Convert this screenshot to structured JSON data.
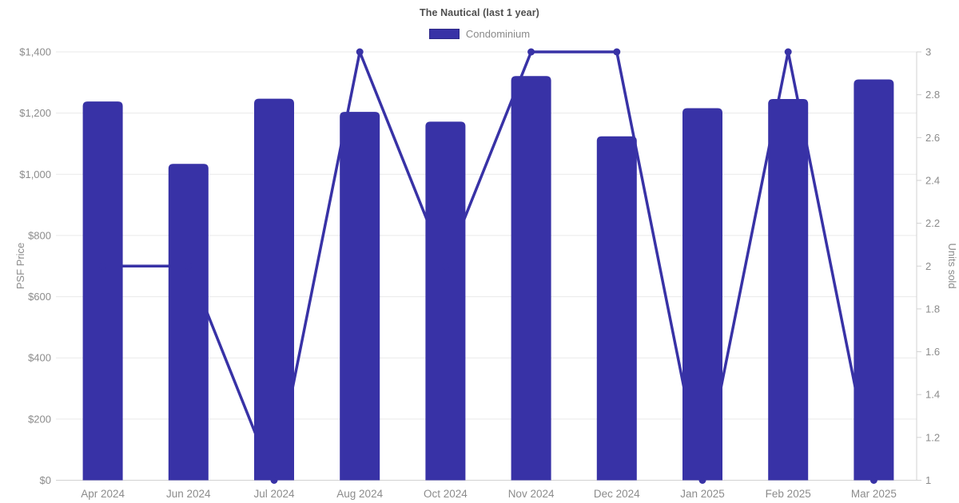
{
  "chart_data": {
    "type": "bar",
    "subtype": "bar-line-combo",
    "title": "The Nautical (last 1 year)",
    "legend": {
      "items": [
        {
          "label": "Condominium"
        }
      ],
      "position": "top"
    },
    "categories": [
      "Apr 2024",
      "Jun 2024",
      "Jul 2024",
      "Aug 2024",
      "Oct 2024",
      "Nov 2024",
      "Dec 2024",
      "Jan 2025",
      "Feb 2025",
      "Mar 2025"
    ],
    "series": [
      {
        "name": "PSF Price",
        "type": "bar",
        "axis": "left",
        "values": [
          1238,
          1034,
          1247,
          1204,
          1172,
          1321,
          1124,
          1216,
          1246,
          1310
        ]
      },
      {
        "name": "Units sold",
        "type": "line",
        "axis": "right",
        "values": [
          2,
          2,
          1,
          3,
          2,
          3,
          3,
          1,
          3,
          1
        ]
      }
    ],
    "left_axis": {
      "label": "PSF Price",
      "min": 0,
      "max": 1400,
      "tick_step": 200,
      "ticks": [
        "$0",
        "$200",
        "$400",
        "$600",
        "$800",
        "$1,000",
        "$1,200",
        "$1,400"
      ]
    },
    "right_axis": {
      "label": "Units sold",
      "min": 1,
      "max": 3,
      "tick_step": 0.2,
      "ticks": [
        "1",
        "1.2",
        "1.4",
        "1.6",
        "1.8",
        "2",
        "2.2",
        "2.4",
        "2.6",
        "2.8",
        "3"
      ]
    },
    "grid": true,
    "colors": {
      "bar": "#3832a6",
      "line": "#3832a6",
      "marker": "#3832a6",
      "grid_line": "#e9e9e9",
      "axis_line": "#d2d2d2",
      "tick_text": "#8c8c8c",
      "axis_title_text": "#8c8c8c",
      "title_text": "#4f4f4f",
      "legend_text": "#8a8a8a"
    }
  }
}
